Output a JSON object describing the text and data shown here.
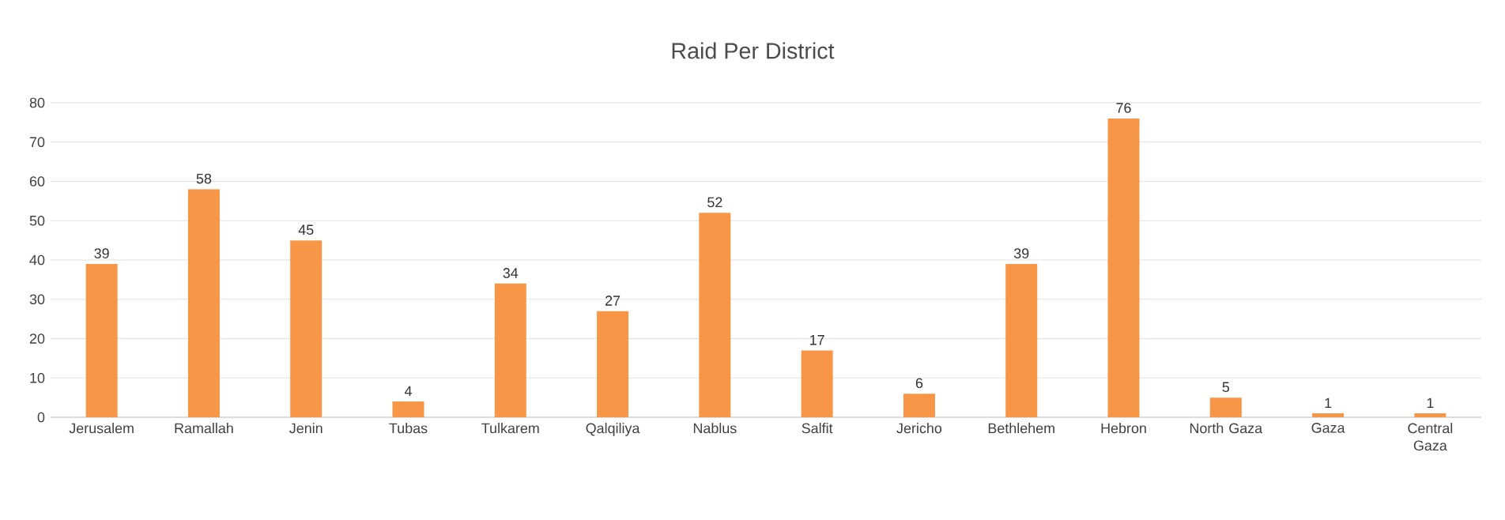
{
  "chart_data": {
    "type": "bar",
    "title": "Raid Per District",
    "categories": [
      "Jerusalem",
      "Ramallah",
      "Jenin",
      "Tubas",
      "Tulkarem",
      "Qalqiliya",
      "Nablus",
      "Salfit",
      "Jericho",
      "Bethlehem",
      "Hebron",
      "North Gaza",
      "Gaza",
      "Central Gaza"
    ],
    "values": [
      39,
      58,
      45,
      4,
      34,
      27,
      52,
      17,
      6,
      39,
      76,
      5,
      1,
      1
    ],
    "color": "#f79646",
    "ylim": [
      0,
      80
    ],
    "yticks": [
      0,
      10,
      20,
      30,
      40,
      50,
      60,
      70,
      80
    ],
    "grid": "y",
    "data_labels": true
  }
}
